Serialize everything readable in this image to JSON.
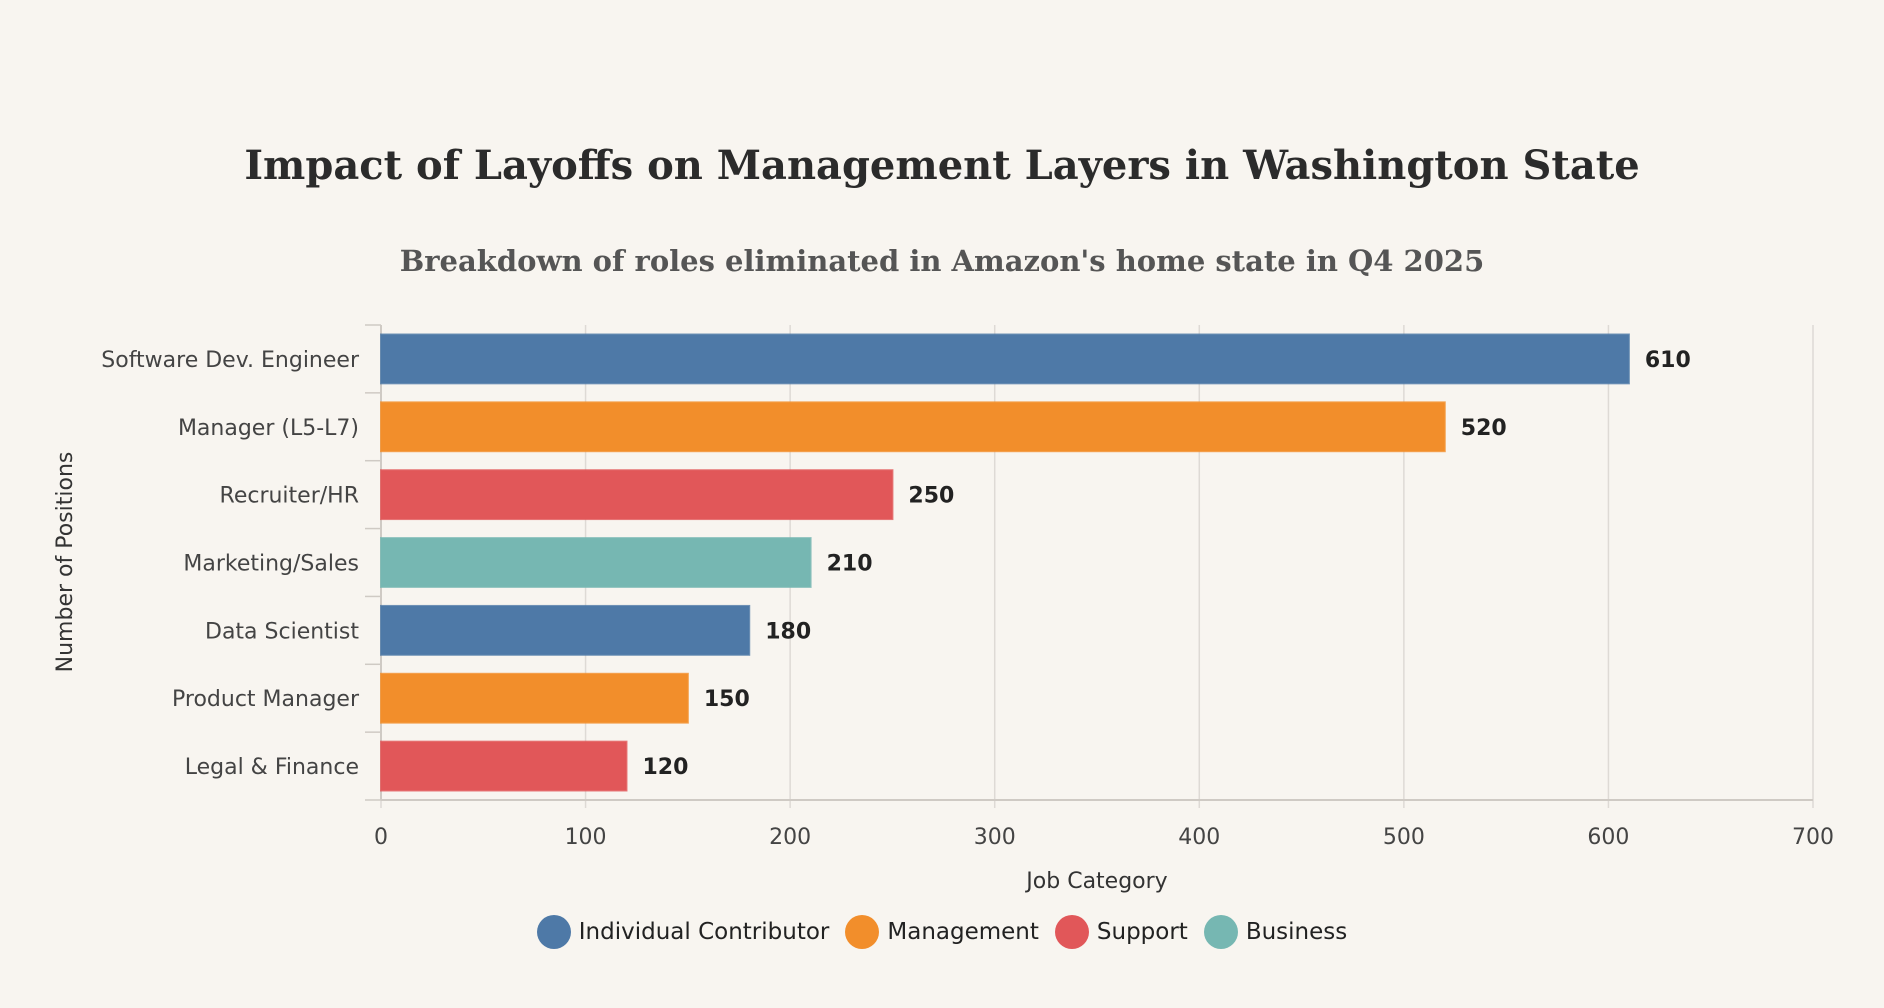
{
  "chart_data": {
    "type": "bar",
    "orientation": "horizontal",
    "title": "Impact of Layoffs on Management Layers in Washington State",
    "subtitle": "Breakdown of roles eliminated in Amazon's home state in Q4 2025",
    "xlabel": "Job Category",
    "ylabel": "Number of Positions",
    "xlim": [
      0,
      700
    ],
    "xticks": [
      0,
      100,
      200,
      300,
      400,
      500,
      600,
      700
    ],
    "grid": true,
    "legend_position": "bottom-center",
    "categories": [
      "Software Dev. Engineer",
      "Manager (L5-L7)",
      "Recruiter/HR",
      "Marketing/Sales",
      "Data Scientist",
      "Product Manager",
      "Legal & Finance"
    ],
    "values": [
      610,
      520,
      250,
      210,
      180,
      150,
      120
    ],
    "groups": [
      "Individual Contributor",
      "Management",
      "Support",
      "Business",
      "Individual Contributor",
      "Management",
      "Support"
    ],
    "legend": [
      {
        "name": "Individual Contributor",
        "color": "#4e79a7"
      },
      {
        "name": "Management",
        "color": "#f28e2b"
      },
      {
        "name": "Support",
        "color": "#e15759"
      },
      {
        "name": "Business",
        "color": "#76b7b2"
      }
    ]
  }
}
